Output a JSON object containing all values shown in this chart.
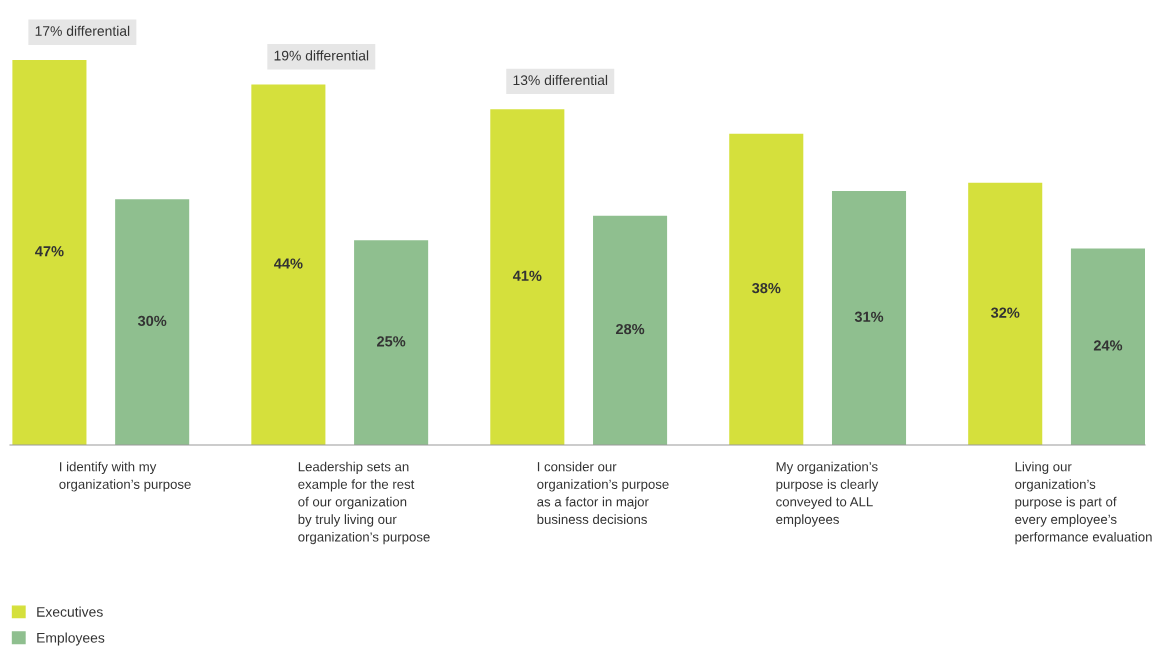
{
  "chart_data": {
    "type": "bar",
    "categories": [
      "I identify with my\norganization’s purpose",
      "Leadership sets an\nexample for the rest\nof our organization\nby truly living our\norganization’s purpose",
      "I consider our\norganization’s purpose\nas a factor in major\nbusiness decisions",
      "My organization’s\npurpose is clearly\nconveyed to ALL\nemployees",
      "Living our\norganization’s\npurpose is part of\nevery employee’s\nperformance evaluation"
    ],
    "series": [
      {
        "name": "Executives",
        "color": "#d5e03c",
        "values": [
          47,
          44,
          41,
          38,
          32
        ],
        "value_labels": [
          "47%",
          "44%",
          "41%",
          "38%",
          "32%"
        ]
      },
      {
        "name": "Employees",
        "color": "#8fbf8f",
        "values": [
          30,
          25,
          28,
          31,
          24
        ],
        "value_labels": [
          "30%",
          "25%",
          "28%",
          "31%",
          "24%"
        ]
      }
    ],
    "annotations": [
      "17% differential",
      "19% differential",
      "13% differential"
    ],
    "legend": "bottom left",
    "grid": false
  }
}
